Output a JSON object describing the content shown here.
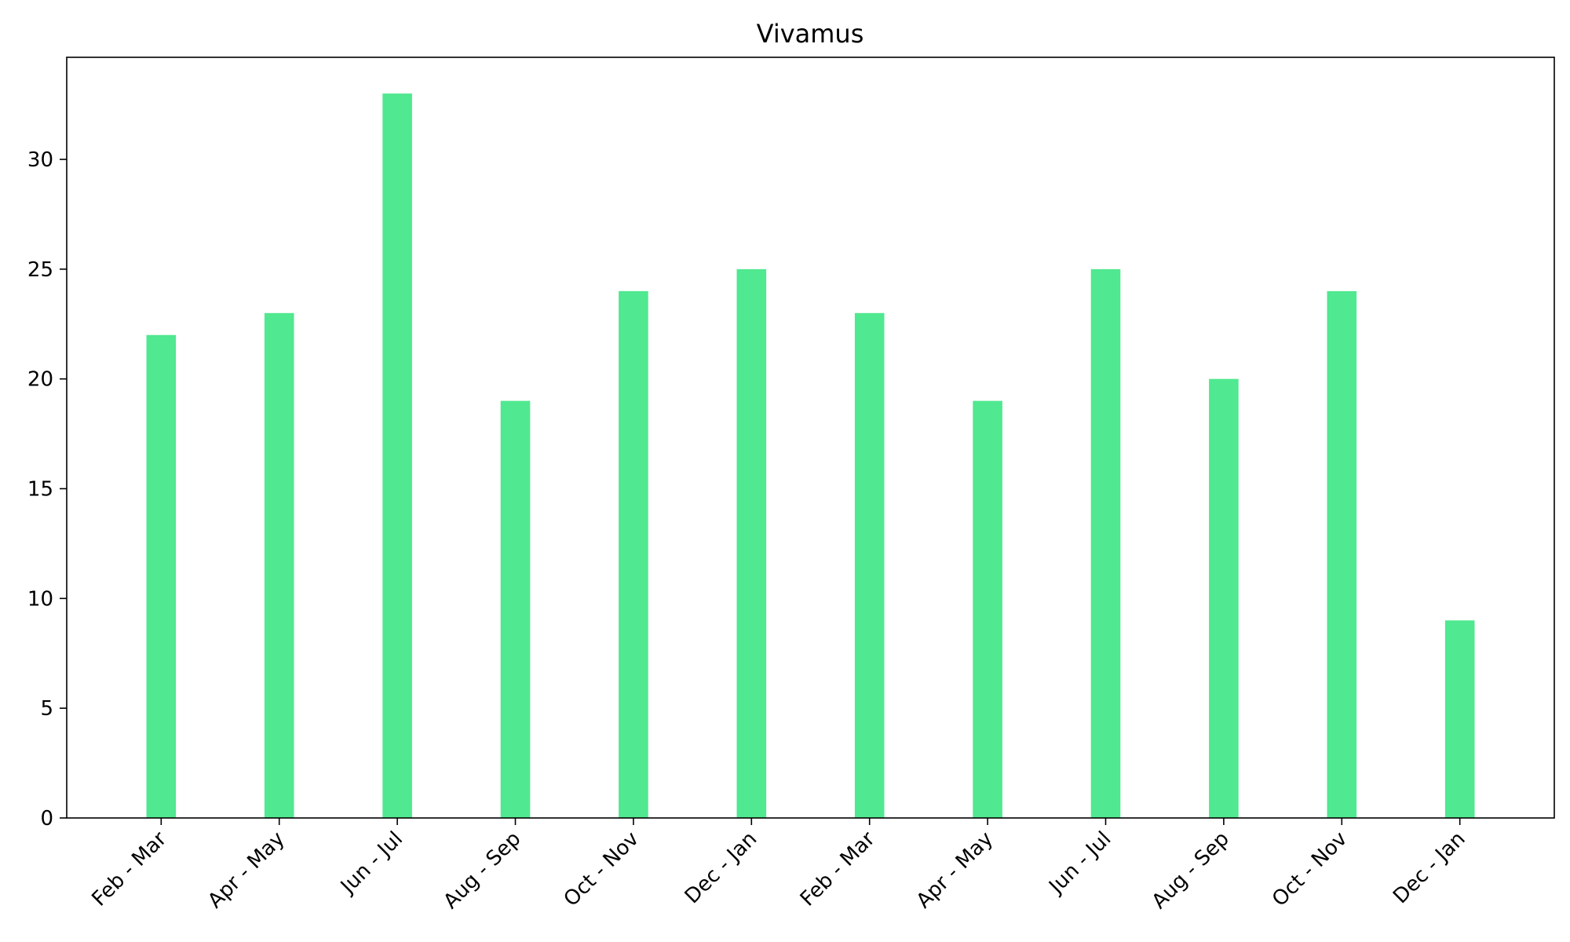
{
  "chart_data": {
    "type": "bar",
    "title": "Vivamus",
    "xlabel": "",
    "ylabel": "",
    "categories": [
      "Feb - Mar",
      "Apr - May",
      "Jun - Jul",
      "Aug - Sep",
      "Oct - Nov",
      "Dec - Jan",
      "Feb - Mar",
      "Apr - May",
      "Jun - Jul",
      "Aug - Sep",
      "Oct - Nov",
      "Dec - Jan"
    ],
    "values": [
      22,
      23,
      33,
      19,
      24,
      25,
      23,
      19,
      25,
      20,
      24,
      9
    ],
    "ylim": [
      0,
      34.65
    ],
    "yticks": [
      0,
      5,
      10,
      15,
      20,
      25,
      30
    ],
    "grid": false,
    "bar_color": "#50e890"
  }
}
